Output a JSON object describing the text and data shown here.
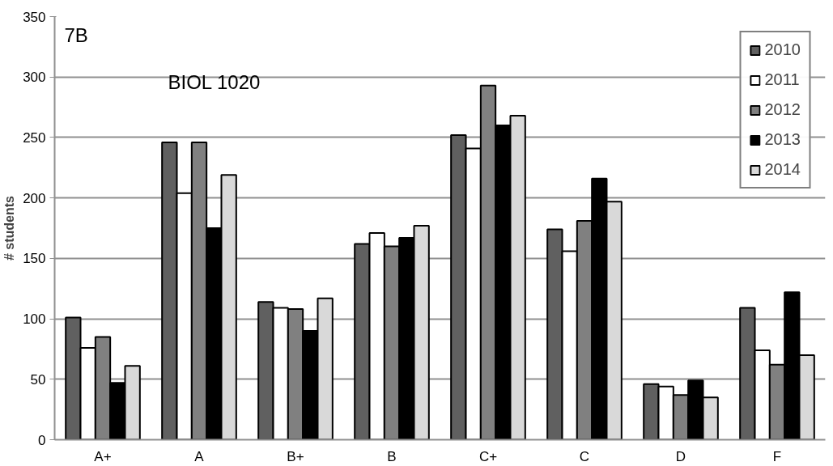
{
  "chart_data": {
    "type": "bar",
    "ylabel": "# students",
    "annotations": [
      "7B",
      "BIOL 1020"
    ],
    "categories": [
      "A+",
      "A",
      "B+",
      "B",
      "C+",
      "C",
      "D",
      "F"
    ],
    "series": [
      {
        "name": "2010",
        "color": "#606060",
        "values": [
          101,
          246,
          114,
          162,
          252,
          174,
          46,
          109
        ]
      },
      {
        "name": "2011",
        "color": "#ffffff",
        "values": [
          76,
          204,
          109,
          171,
          241,
          156,
          44,
          74
        ]
      },
      {
        "name": "2012",
        "color": "#808080",
        "values": [
          85,
          246,
          108,
          160,
          293,
          181,
          37,
          62
        ]
      },
      {
        "name": "2013",
        "color": "#000000",
        "values": [
          47,
          175,
          90,
          167,
          260,
          216,
          49,
          122
        ]
      },
      {
        "name": "2014",
        "color": "#d9d9d9",
        "values": [
          61,
          219,
          117,
          177,
          268,
          197,
          35,
          70
        ]
      }
    ],
    "ylim": [
      0,
      350
    ],
    "yticks": [
      0,
      50,
      100,
      150,
      200,
      250,
      300,
      350
    ],
    "grid": "y",
    "legend": "top right"
  }
}
